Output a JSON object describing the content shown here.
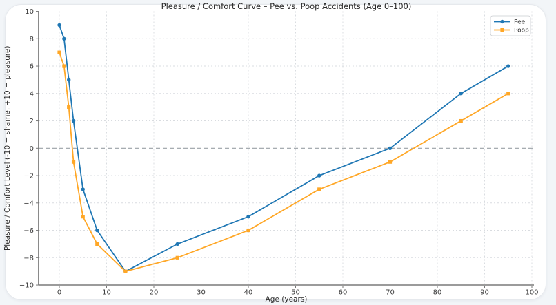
{
  "page": {
    "background": "#f2f5f8",
    "card_background": "#ffffff"
  },
  "chart_data": {
    "type": "line",
    "title": "Pleasure / Comfort Curve – Pee vs. Poop Accidents (Age 0–100)",
    "xlabel": "Age (years)",
    "ylabel": "Pleasure / Comfort Level (-10 = shame, +10 = pleasure)",
    "x": [
      0,
      1,
      2,
      3,
      5,
      8,
      14,
      25,
      40,
      55,
      70,
      85,
      95
    ],
    "series": [
      {
        "name": "Pee",
        "color": "#1f77b4",
        "marker": "circle",
        "values": [
          9,
          8,
          5,
          2,
          -3,
          -6,
          -9,
          -7,
          -5,
          -2,
          0,
          4,
          6
        ]
      },
      {
        "name": "Poop",
        "color": "#ffa726",
        "marker": "square",
        "values": [
          7,
          6,
          3,
          -1,
          -5,
          -7,
          -9,
          -8,
          -6,
          -3,
          -1,
          2,
          4
        ]
      }
    ],
    "xlim": [
      0,
      100
    ],
    "ylim": [
      -10,
      10
    ],
    "xticks": [
      0,
      10,
      20,
      30,
      40,
      50,
      60,
      70,
      80,
      90,
      100
    ],
    "yticks": [
      -10,
      -8,
      -6,
      -4,
      -2,
      0,
      2,
      4,
      6,
      8,
      10
    ],
    "grid": true,
    "zero_line": true,
    "legend_position": "upper right",
    "legend_labels": [
      "Pee",
      "Poop"
    ]
  }
}
